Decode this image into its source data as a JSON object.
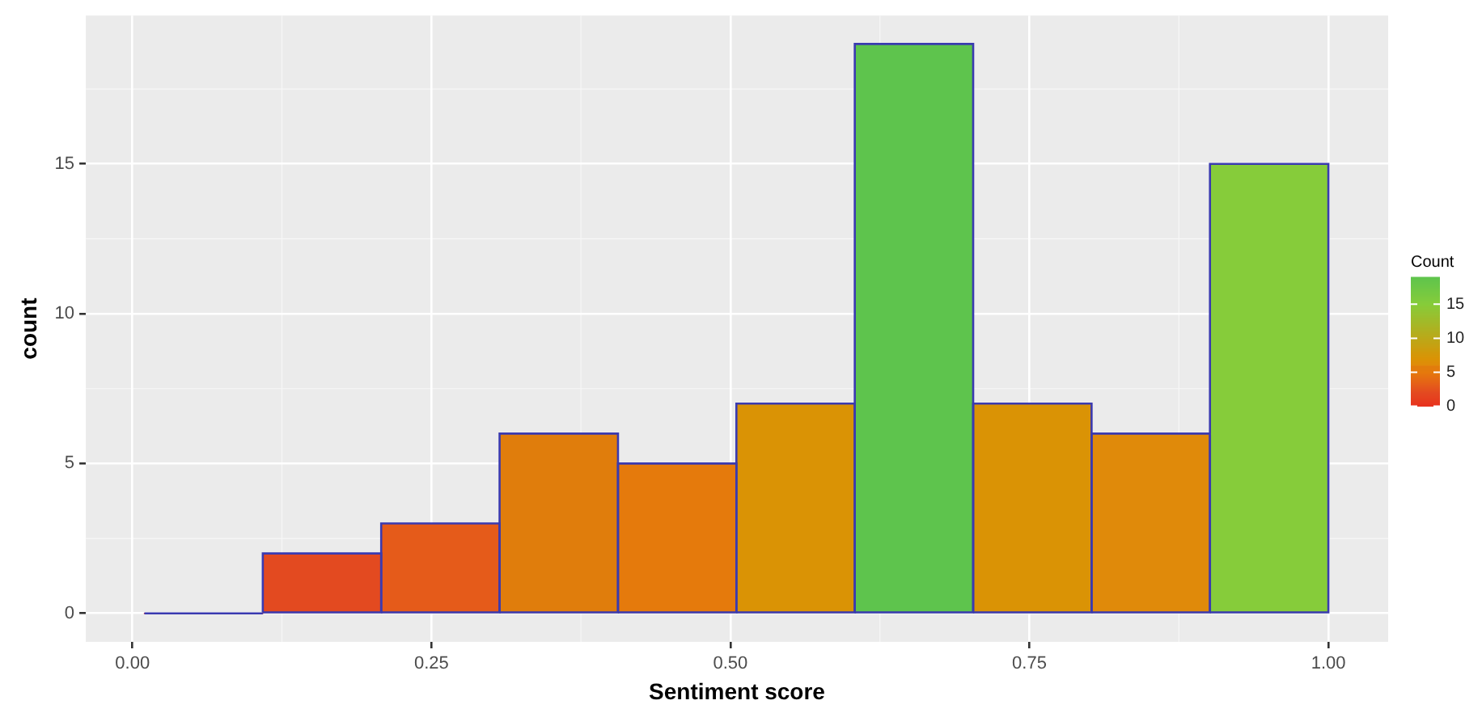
{
  "chart_data": {
    "type": "histogram",
    "xlabel": "Sentiment score",
    "ylabel": "count",
    "clabel": "Count",
    "bins": [
      0.01,
      0.109,
      0.208,
      0.307,
      0.406,
      0.505,
      0.604,
      0.703,
      0.802,
      0.901,
      1.0
    ],
    "values": [
      0,
      2,
      3,
      6,
      5,
      7,
      19,
      7,
      6,
      15
    ],
    "colors": [
      "#e8321e",
      "#e34a20",
      "#e55b1a",
      "#e07d0c",
      "#e57a0c",
      "#da9305",
      "#5ec44d",
      "#da9305",
      "#e08a0a",
      "#86cc3a"
    ],
    "xlim": [
      -0.039,
      1.05
    ],
    "xticks": [
      {
        "value": 0,
        "label": "0.00"
      },
      {
        "value": 0.25,
        "label": "0.25"
      },
      {
        "value": 0.5,
        "label": "0.50"
      },
      {
        "value": 0.75,
        "label": "0.75"
      },
      {
        "value": 1,
        "label": "1.00"
      }
    ],
    "ylim": [
      -0.95,
      19.95
    ],
    "yticks": [
      0,
      5,
      10,
      15
    ],
    "clim": [
      0,
      19
    ],
    "cticks": [
      0,
      5,
      10,
      15
    ],
    "grid": true
  }
}
